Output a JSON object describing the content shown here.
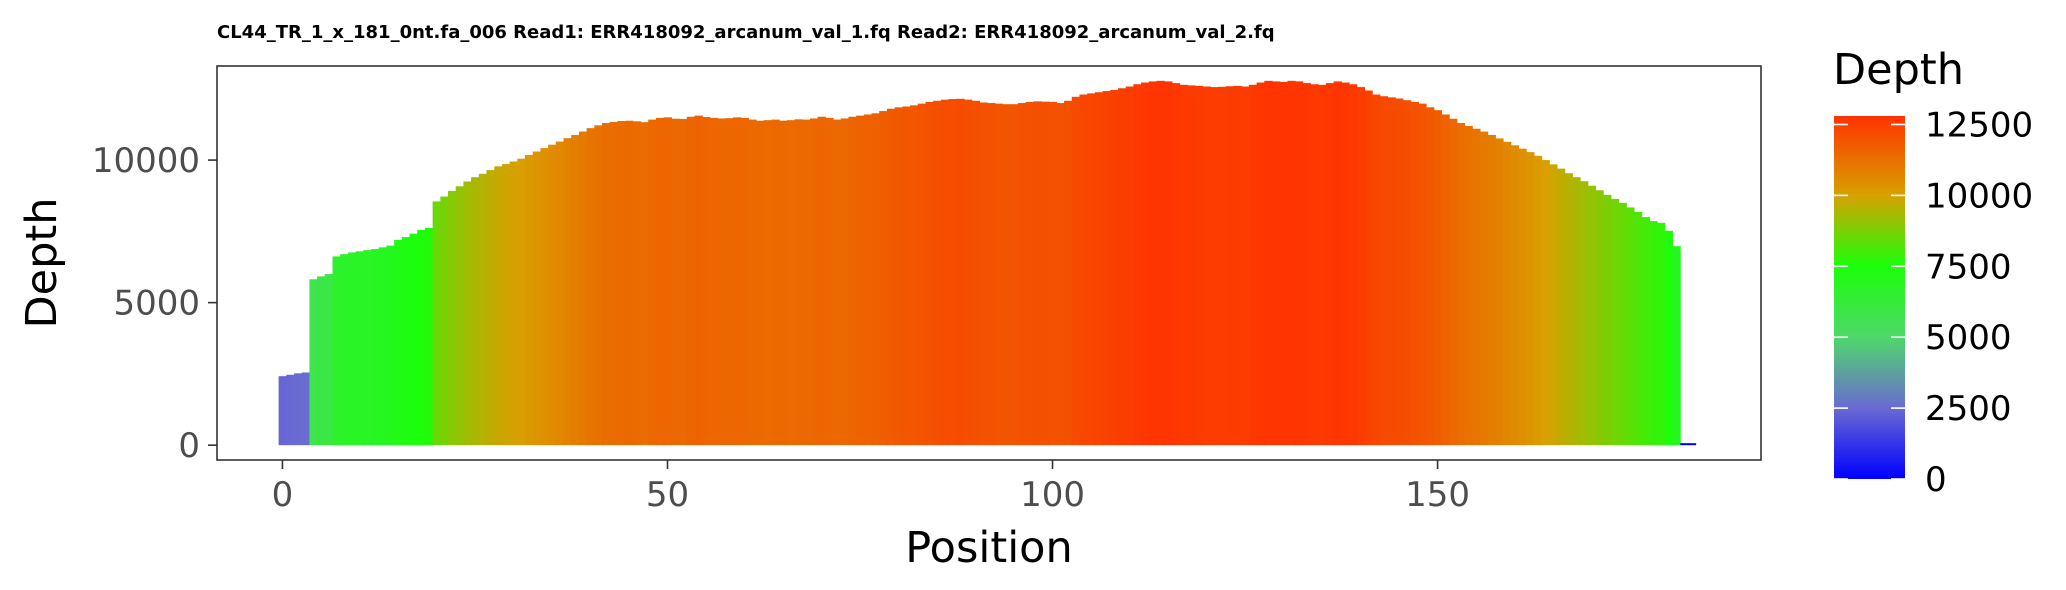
{
  "chart_data": {
    "type": "bar",
    "title": "CL44_TR_1_x_181_0nt.fa_006 Read1: ERR418092_arcanum_val_1.fq Read2: ERR418092_arcanum_val_2.fq",
    "xlabel": "Position",
    "ylabel": "Depth",
    "xlim": [
      -8.5,
      192
    ],
    "ylim": [
      -520,
      13300
    ],
    "x_ticks": [
      0,
      50,
      100,
      150
    ],
    "x_tick_labels": [
      "0",
      "50",
      "100",
      "150"
    ],
    "y_ticks": [
      0,
      5000,
      10000
    ],
    "y_tick_labels": [
      "0",
      "5000",
      "10000"
    ],
    "grid": false,
    "legend": {
      "title": "Depth",
      "position": "right",
      "range": [
        0,
        12800
      ],
      "ticks": [
        0,
        2500,
        5000,
        7500,
        10000,
        12500
      ],
      "tick_labels": [
        "0",
        "2500",
        "5000",
        "7500",
        "10000",
        "12500"
      ],
      "colors": [
        {
          "value": 0,
          "color": "#0000ff"
        },
        {
          "value": 2500,
          "color": "#6a6ad2"
        },
        {
          "value": 5000,
          "color": "#4fd86a"
        },
        {
          "value": 7500,
          "color": "#1aff0a"
        },
        {
          "value": 10000,
          "color": "#d8a000"
        },
        {
          "value": 12800,
          "color": "#ff3300"
        }
      ]
    },
    "series": [
      {
        "values": [
          [
            0,
            2420
          ],
          [
            1,
            2470
          ],
          [
            2,
            2520
          ],
          [
            3,
            2550
          ],
          [
            4,
            5820
          ],
          [
            5,
            5920
          ],
          [
            6,
            6000
          ],
          [
            7,
            6620
          ],
          [
            8,
            6700
          ],
          [
            9,
            6760
          ],
          [
            10,
            6800
          ],
          [
            11,
            6840
          ],
          [
            12,
            6880
          ],
          [
            13,
            6940
          ],
          [
            14,
            7000
          ],
          [
            15,
            7200
          ],
          [
            16,
            7300
          ],
          [
            17,
            7420
          ],
          [
            18,
            7550
          ],
          [
            19,
            7620
          ],
          [
            20,
            8550
          ],
          [
            21,
            8720
          ],
          [
            22,
            8920
          ],
          [
            23,
            9080
          ],
          [
            24,
            9250
          ],
          [
            25,
            9400
          ],
          [
            26,
            9520
          ],
          [
            27,
            9650
          ],
          [
            28,
            9780
          ],
          [
            29,
            9860
          ],
          [
            30,
            9950
          ],
          [
            31,
            10050
          ],
          [
            32,
            10180
          ],
          [
            33,
            10300
          ],
          [
            34,
            10420
          ],
          [
            35,
            10540
          ],
          [
            36,
            10650
          ],
          [
            37,
            10770
          ],
          [
            38,
            10880
          ],
          [
            39,
            11000
          ],
          [
            40,
            11120
          ],
          [
            41,
            11220
          ],
          [
            42,
            11300
          ],
          [
            43,
            11340
          ],
          [
            44,
            11370
          ],
          [
            45,
            11380
          ],
          [
            46,
            11360
          ],
          [
            47,
            11330
          ],
          [
            48,
            11420
          ],
          [
            49,
            11480
          ],
          [
            50,
            11500
          ],
          [
            51,
            11450
          ],
          [
            52,
            11440
          ],
          [
            53,
            11520
          ],
          [
            54,
            11560
          ],
          [
            55,
            11510
          ],
          [
            56,
            11480
          ],
          [
            57,
            11460
          ],
          [
            58,
            11470
          ],
          [
            59,
            11500
          ],
          [
            60,
            11480
          ],
          [
            61,
            11420
          ],
          [
            62,
            11380
          ],
          [
            63,
            11400
          ],
          [
            64,
            11420
          ],
          [
            65,
            11380
          ],
          [
            66,
            11400
          ],
          [
            67,
            11430
          ],
          [
            68,
            11420
          ],
          [
            69,
            11460
          ],
          [
            70,
            11520
          ],
          [
            71,
            11480
          ],
          [
            72,
            11420
          ],
          [
            73,
            11460
          ],
          [
            74,
            11520
          ],
          [
            75,
            11560
          ],
          [
            76,
            11600
          ],
          [
            77,
            11640
          ],
          [
            78,
            11720
          ],
          [
            79,
            11800
          ],
          [
            80,
            11850
          ],
          [
            81,
            11880
          ],
          [
            82,
            11920
          ],
          [
            83,
            11980
          ],
          [
            84,
            12040
          ],
          [
            85,
            12080
          ],
          [
            86,
            12120
          ],
          [
            87,
            12140
          ],
          [
            88,
            12150
          ],
          [
            89,
            12120
          ],
          [
            90,
            12080
          ],
          [
            91,
            12020
          ],
          [
            92,
            12000
          ],
          [
            93,
            11980
          ],
          [
            94,
            11960
          ],
          [
            95,
            11960
          ],
          [
            96,
            12000
          ],
          [
            97,
            12040
          ],
          [
            98,
            12060
          ],
          [
            99,
            12050
          ],
          [
            100,
            12040
          ],
          [
            101,
            12000
          ],
          [
            102,
            12080
          ],
          [
            103,
            12220
          ],
          [
            104,
            12300
          ],
          [
            105,
            12340
          ],
          [
            106,
            12380
          ],
          [
            107,
            12420
          ],
          [
            108,
            12460
          ],
          [
            109,
            12520
          ],
          [
            110,
            12580
          ],
          [
            111,
            12660
          ],
          [
            112,
            12720
          ],
          [
            113,
            12760
          ],
          [
            114,
            12780
          ],
          [
            115,
            12760
          ],
          [
            116,
            12700
          ],
          [
            117,
            12640
          ],
          [
            118,
            12620
          ],
          [
            119,
            12600
          ],
          [
            120,
            12580
          ],
          [
            121,
            12560
          ],
          [
            122,
            12570
          ],
          [
            123,
            12590
          ],
          [
            124,
            12600
          ],
          [
            125,
            12580
          ],
          [
            126,
            12640
          ],
          [
            127,
            12720
          ],
          [
            128,
            12780
          ],
          [
            129,
            12760
          ],
          [
            130,
            12740
          ],
          [
            131,
            12780
          ],
          [
            132,
            12760
          ],
          [
            133,
            12700
          ],
          [
            134,
            12660
          ],
          [
            135,
            12640
          ],
          [
            136,
            12700
          ],
          [
            137,
            12760
          ],
          [
            138,
            12720
          ],
          [
            139,
            12660
          ],
          [
            140,
            12560
          ],
          [
            141,
            12440
          ],
          [
            142,
            12300
          ],
          [
            143,
            12240
          ],
          [
            144,
            12200
          ],
          [
            145,
            12160
          ],
          [
            146,
            12100
          ],
          [
            147,
            12040
          ],
          [
            148,
            11980
          ],
          [
            149,
            11850
          ],
          [
            150,
            11750
          ],
          [
            151,
            11600
          ],
          [
            152,
            11450
          ],
          [
            153,
            11300
          ],
          [
            154,
            11200
          ],
          [
            155,
            11100
          ],
          [
            156,
            11000
          ],
          [
            157,
            10880
          ],
          [
            158,
            10760
          ],
          [
            159,
            10640
          ],
          [
            160,
            10520
          ],
          [
            161,
            10400
          ],
          [
            162,
            10280
          ],
          [
            163,
            10150
          ],
          [
            164,
            10000
          ],
          [
            165,
            9850
          ],
          [
            166,
            9700
          ],
          [
            167,
            9540
          ],
          [
            168,
            9400
          ],
          [
            169,
            9260
          ],
          [
            170,
            9100
          ],
          [
            171,
            8940
          ],
          [
            172,
            8780
          ],
          [
            173,
            8640
          ],
          [
            174,
            8500
          ],
          [
            175,
            8340
          ],
          [
            176,
            8180
          ],
          [
            177,
            8000
          ],
          [
            178,
            7860
          ],
          [
            179,
            7800
          ],
          [
            180,
            7520
          ],
          [
            181,
            6980
          ],
          [
            182,
            20
          ],
          [
            183,
            20
          ]
        ]
      }
    ]
  }
}
